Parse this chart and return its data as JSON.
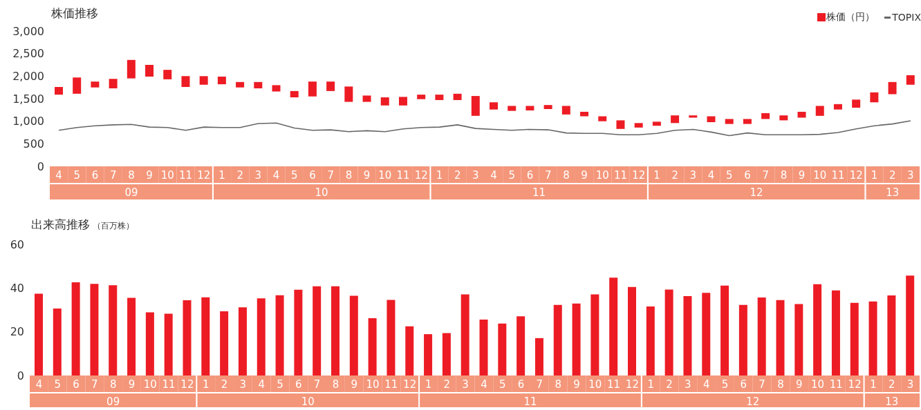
{
  "chart_data": [
    {
      "type": "bar",
      "title": "株価推移",
      "legend": "top right",
      "categories": [
        "4",
        "5",
        "6",
        "7",
        "8",
        "9",
        "10",
        "11",
        "12",
        "1",
        "2",
        "3",
        "4",
        "5",
        "6",
        "7",
        "8",
        "9",
        "10",
        "11",
        "12",
        "1",
        "2",
        "3",
        "4",
        "5",
        "6",
        "7",
        "8",
        "9",
        "10",
        "11",
        "12",
        "1",
        "2",
        "3",
        "4",
        "5",
        "6",
        "7",
        "8",
        "9",
        "10",
        "11",
        "12",
        "1",
        "2",
        "3"
      ],
      "series": [
        {
          "name": "株価（円）",
          "color": "#ed1c24",
          "base": [
            1590,
            1610,
            1750,
            1730,
            1950,
            1990,
            1930,
            1760,
            1810,
            1820,
            1750,
            1730,
            1660,
            1530,
            1550,
            1670,
            1430,
            1430,
            1350,
            1350,
            1490,
            1470,
            1470,
            1120,
            1260,
            1230,
            1240,
            1270,
            1150,
            1110,
            1000,
            830,
            860,
            900,
            960,
            1080,
            980,
            940,
            940,
            1050,
            1020,
            1080,
            1120,
            1260,
            1300,
            1420,
            1600,
            1810
          ],
          "values": [
            170,
            360,
            130,
            210,
            410,
            260,
            210,
            240,
            190,
            170,
            120,
            140,
            140,
            140,
            330,
            210,
            340,
            140,
            180,
            190,
            100,
            120,
            140,
            440,
            160,
            110,
            100,
            90,
            190,
            100,
            110,
            190,
            100,
            90,
            170,
            50,
            130,
            110,
            110,
            130,
            110,
            130,
            220,
            120,
            180,
            220,
            270,
            210
          ]
        },
        {
          "name": "TOPIX",
          "type": "line",
          "color": "#666666",
          "values": [
            800,
            860,
            900,
            920,
            930,
            870,
            860,
            800,
            870,
            860,
            860,
            950,
            960,
            850,
            800,
            810,
            770,
            790,
            770,
            830,
            860,
            870,
            920,
            840,
            820,
            800,
            820,
            810,
            740,
            730,
            730,
            700,
            700,
            730,
            800,
            820,
            760,
            680,
            740,
            700,
            700,
            700,
            710,
            750,
            830,
            900,
            940,
            1010
          ]
        }
      ],
      "ylim": [
        0,
        3000
      ],
      "yticks": [
        0,
        500,
        {
          "value": 1000,
          "label": "1,000"
        },
        {
          "value": 1500,
          "label": "1,500"
        },
        {
          "value": 2000,
          "label": "2,000"
        },
        {
          "value": 2500,
          "label": "2,500"
        },
        {
          "value": 3000,
          "label": "3,000"
        }
      ],
      "annotations": [
        "09",
        "10",
        "11",
        "12",
        "13"
      ]
    },
    {
      "type": "bar",
      "title": "出来高推移",
      "subtitle": "（百万株）",
      "categories": [
        "4",
        "5",
        "6",
        "7",
        "8",
        "9",
        "10",
        "11",
        "12",
        "1",
        "2",
        "3",
        "4",
        "5",
        "6",
        "7",
        "8",
        "9",
        "10",
        "11",
        "12",
        "1",
        "2",
        "3",
        "4",
        "5",
        "6",
        "7",
        "8",
        "9",
        "10",
        "11",
        "12",
        "1",
        "2",
        "3",
        "4",
        "5",
        "6",
        "7",
        "8",
        "9",
        "10",
        "11",
        "12",
        "1",
        "2",
        "3"
      ],
      "series": [
        {
          "color": "#ed1c24",
          "values": [
            37.4,
            30.6,
            42.6,
            41.9,
            41.3,
            35.5,
            28.9,
            28.3,
            34.4,
            35.8,
            29.4,
            31.2,
            35.3,
            36.7,
            39.2,
            40.8,
            40.8,
            36.5,
            26.2,
            34.6,
            22.5,
            18.9,
            19.4,
            37.1,
            25.6,
            23.8,
            27.1,
            17.1,
            32.3,
            32.9,
            37.1,
            44.8,
            40.5,
            31.6,
            39.3,
            36.3,
            37.8,
            41.1,
            32.3,
            35.7,
            34.5,
            32.7,
            41.8,
            38.9,
            33.2,
            33.9,
            36.6,
            45.7
          ]
        }
      ],
      "ylim": [
        0,
        60
      ],
      "yticks": [
        0,
        20,
        40,
        60
      ],
      "annotations": [
        "09",
        "10",
        "11",
        "12",
        "13"
      ]
    }
  ]
}
